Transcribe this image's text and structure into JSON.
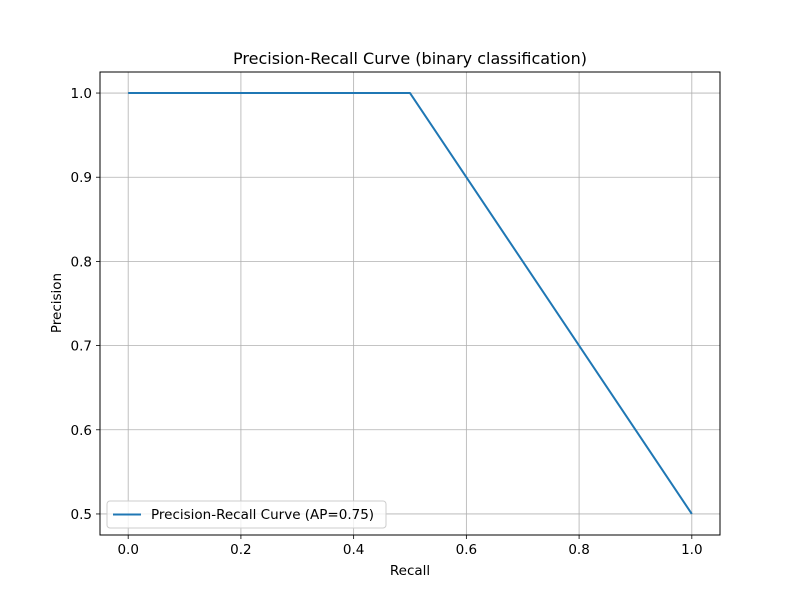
{
  "chart_data": {
    "type": "line",
    "title": "Precision-Recall Curve (binary classification)",
    "xlabel": "Recall",
    "ylabel": "Precision",
    "xlim": [
      -0.05,
      1.05
    ],
    "ylim": [
      0.475,
      1.025
    ],
    "xticks": [
      0.0,
      0.2,
      0.4,
      0.6,
      0.8,
      1.0
    ],
    "xtick_labels": [
      "0.0",
      "0.2",
      "0.4",
      "0.6",
      "0.8",
      "1.0"
    ],
    "yticks": [
      0.5,
      0.6,
      0.7,
      0.8,
      0.9,
      1.0
    ],
    "ytick_labels": [
      "0.5",
      "0.6",
      "0.7",
      "0.8",
      "0.9",
      "1.0"
    ],
    "grid": true,
    "legend_position": "lower-left",
    "series": [
      {
        "name": "Precision-Recall Curve (AP=0.75)",
        "color": "#1f77b4",
        "x": [
          0.0,
          0.5,
          1.0
        ],
        "y": [
          1.0,
          1.0,
          0.5
        ]
      }
    ]
  }
}
